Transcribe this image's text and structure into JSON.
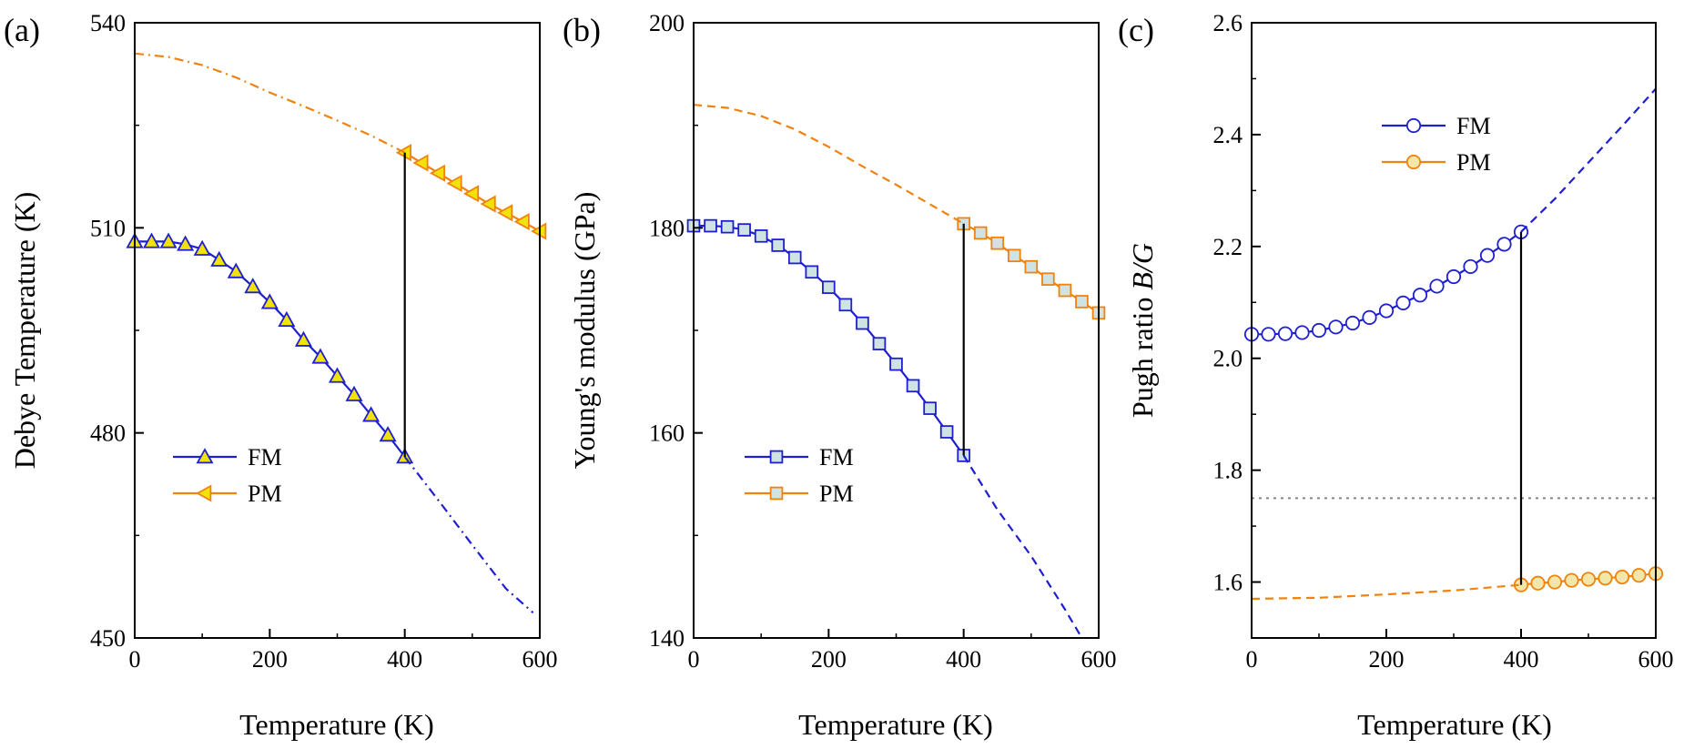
{
  "figure": {
    "panels": [
      "(a)",
      "(b)",
      "(c)"
    ]
  },
  "colors": {
    "fm": "#1f1fd2",
    "pm": "#f0820f",
    "axis": "#000000",
    "guide": "#888888",
    "marker_fill_a": "#f2e20c",
    "marker_fill_b": "#cfe3e3",
    "marker_fill_c_fm": "#ffffff",
    "marker_fill_c_pm": "#f2e6a8"
  },
  "chart_data": [
    {
      "panel": "(a)",
      "type": "line",
      "xlabel": "Temperature (K)",
      "ylabel": "Debye Temperature (K)",
      "xlim": [
        0,
        600
      ],
      "ylim": [
        450,
        540
      ],
      "xticks": [
        0,
        200,
        400,
        600
      ],
      "yticks": [
        450,
        480,
        510,
        540
      ],
      "legend": {
        "position": "lower-left",
        "entries": [
          "FM",
          "PM"
        ]
      },
      "markers": {
        "FM": "triangle-up",
        "PM": "triangle-left"
      },
      "series": [
        {
          "name": "FM",
          "style": "solid",
          "x": [
            0,
            25,
            50,
            75,
            100,
            125,
            150,
            175,
            200,
            225,
            250,
            275,
            300,
            325,
            350,
            375,
            400
          ],
          "y": [
            508.0,
            508.0,
            508.0,
            507.6,
            506.9,
            505.3,
            503.6,
            501.4,
            499.1,
            496.5,
            493.6,
            491.1,
            488.3,
            485.6,
            482.6,
            479.7,
            476.5
          ]
        },
        {
          "name": "FM-extrapolated",
          "style": "dashdot",
          "x": [
            400,
            450,
            500,
            550,
            590
          ],
          "y": [
            476.5,
            470.1,
            463.6,
            457.2,
            453.7
          ]
        },
        {
          "name": "PM",
          "style": "solid",
          "x": [
            400,
            425,
            450,
            475,
            500,
            525,
            550,
            575,
            600
          ],
          "y": [
            521.0,
            519.5,
            518.0,
            516.5,
            515.0,
            513.5,
            512.2,
            510.9,
            509.5
          ]
        },
        {
          "name": "PM-extrapolated",
          "style": "dashdot",
          "x": [
            0,
            50,
            100,
            150,
            200,
            250,
            300,
            350,
            400
          ],
          "y": [
            535.5,
            535.0,
            533.8,
            532.0,
            529.8,
            527.8,
            525.7,
            523.5,
            521.0
          ]
        },
        {
          "name": "transition",
          "style": "vline",
          "x": [
            400,
            400
          ],
          "y": [
            476.5,
            521.0
          ]
        }
      ]
    },
    {
      "panel": "(b)",
      "type": "line",
      "xlabel": "Temperature (K)",
      "ylabel": "Young's modulus (GPa)",
      "xlim": [
        0,
        600
      ],
      "ylim": [
        140,
        200
      ],
      "xticks": [
        0,
        200,
        400,
        600
      ],
      "yticks": [
        140,
        160,
        180,
        200
      ],
      "legend": {
        "position": "lower-left",
        "entries": [
          "FM",
          "PM"
        ]
      },
      "markers": {
        "FM": "square",
        "PM": "square"
      },
      "series": [
        {
          "name": "FM",
          "style": "solid",
          "x": [
            0,
            25,
            50,
            75,
            100,
            125,
            150,
            175,
            200,
            225,
            250,
            275,
            300,
            325,
            350,
            375,
            400
          ],
          "y": [
            180.2,
            180.2,
            180.1,
            179.8,
            179.2,
            178.3,
            177.1,
            175.7,
            174.2,
            172.5,
            170.7,
            168.7,
            166.7,
            164.6,
            162.4,
            160.1,
            157.8
          ]
        },
        {
          "name": "FM-extrapolated",
          "style": "dashed",
          "x": [
            400,
            450,
            500,
            550,
            575
          ],
          "y": [
            157.8,
            152.5,
            148.0,
            142.8,
            140.0
          ]
        },
        {
          "name": "PM",
          "style": "solid",
          "x": [
            400,
            425,
            450,
            475,
            500,
            525,
            550,
            575,
            600
          ],
          "y": [
            180.4,
            179.5,
            178.5,
            177.3,
            176.2,
            175.0,
            173.9,
            172.8,
            171.7
          ]
        },
        {
          "name": "PM-extrapolated",
          "style": "dashed",
          "x": [
            0,
            50,
            100,
            150,
            200,
            250,
            300,
            350,
            400
          ],
          "y": [
            192.0,
            191.7,
            190.9,
            189.6,
            187.9,
            186.0,
            184.2,
            182.3,
            180.4
          ]
        },
        {
          "name": "transition",
          "style": "vline",
          "x": [
            400,
            400
          ],
          "y": [
            157.8,
            180.4
          ]
        }
      ]
    },
    {
      "panel": "(c)",
      "type": "line",
      "xlabel": "Temperature (K)",
      "ylabel": "Pugh ratio B/G",
      "xlim": [
        0,
        600
      ],
      "ylim": [
        1.5,
        2.6
      ],
      "xticks": [
        0,
        200,
        400,
        600
      ],
      "yticks": [
        1.6,
        1.8,
        2.0,
        2.2,
        2.4,
        2.6
      ],
      "reference_line": 1.75,
      "legend": {
        "position": "top-center",
        "entries": [
          "FM",
          "PM"
        ]
      },
      "markers": {
        "FM": "circle",
        "PM": "circle"
      },
      "series": [
        {
          "name": "FM",
          "style": "solid",
          "x": [
            0,
            25,
            50,
            75,
            100,
            125,
            150,
            175,
            200,
            225,
            250,
            275,
            300,
            325,
            350,
            375,
            400
          ],
          "y": [
            2.043,
            2.043,
            2.044,
            2.046,
            2.05,
            2.056,
            2.063,
            2.073,
            2.085,
            2.099,
            2.113,
            2.129,
            2.146,
            2.164,
            2.184,
            2.204,
            2.226
          ]
        },
        {
          "name": "FM-extrapolated",
          "style": "dashed",
          "x": [
            400,
            450,
            500,
            550,
            600
          ],
          "y": [
            2.226,
            2.285,
            2.35,
            2.415,
            2.482
          ]
        },
        {
          "name": "PM",
          "style": "solid",
          "x": [
            400,
            425,
            450,
            475,
            500,
            525,
            550,
            575,
            600
          ],
          "y": [
            1.595,
            1.598,
            1.6,
            1.603,
            1.605,
            1.607,
            1.609,
            1.612,
            1.615
          ]
        },
        {
          "name": "PM-extrapolated",
          "style": "dashed",
          "x": [
            0,
            100,
            200,
            300,
            400
          ],
          "y": [
            1.57,
            1.572,
            1.578,
            1.585,
            1.595
          ]
        },
        {
          "name": "transition",
          "style": "vline",
          "x": [
            400,
            400
          ],
          "y": [
            1.595,
            2.226
          ]
        }
      ]
    }
  ]
}
